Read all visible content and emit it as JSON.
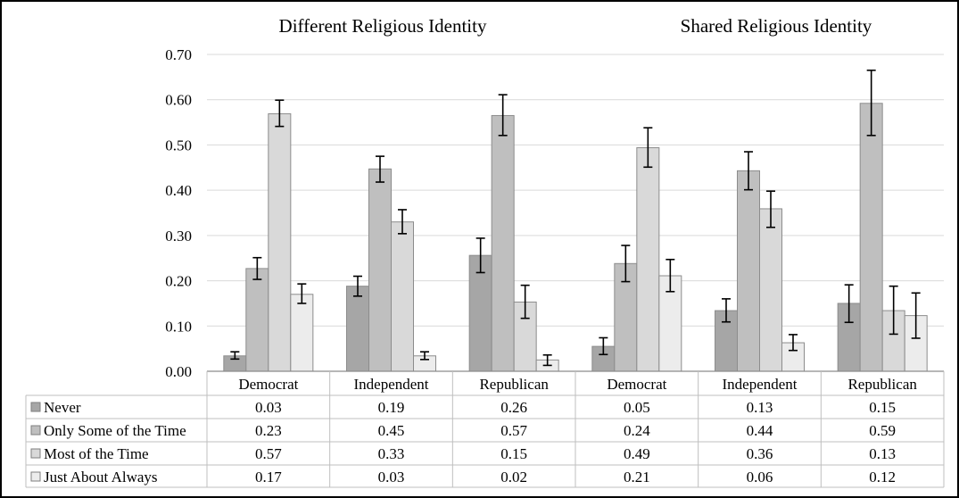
{
  "chart_data": {
    "type": "bar",
    "panels": [
      {
        "title": "Different Religious Identity"
      },
      {
        "title": "Shared Religious Identity"
      }
    ],
    "categories": [
      "Democrat",
      "Independent",
      "Republican",
      "Democrat",
      "Independent",
      "Republican"
    ],
    "series": [
      {
        "name": "Never",
        "color": "#a6a6a6",
        "values": [
          0.03,
          0.19,
          0.26,
          0.05,
          0.13,
          0.15
        ],
        "bar_values": [
          0.034,
          0.188,
          0.256,
          0.055,
          0.134,
          0.15
        ],
        "err_low": [
          0.027,
          0.166,
          0.218,
          0.037,
          0.109,
          0.108
        ],
        "err_high": [
          0.043,
          0.21,
          0.294,
          0.074,
          0.16,
          0.191
        ]
      },
      {
        "name": "Only Some of the Time",
        "color": "#bfbfbf",
        "values": [
          0.23,
          0.45,
          0.57,
          0.24,
          0.44,
          0.59
        ],
        "bar_values": [
          0.227,
          0.447,
          0.565,
          0.238,
          0.443,
          0.592
        ],
        "err_low": [
          0.203,
          0.418,
          0.521,
          0.198,
          0.401,
          0.521
        ],
        "err_high": [
          0.251,
          0.475,
          0.611,
          0.278,
          0.485,
          0.665
        ]
      },
      {
        "name": "Most of the Time",
        "color": "#d9d9d9",
        "values": [
          0.57,
          0.33,
          0.15,
          0.49,
          0.36,
          0.13
        ],
        "bar_values": [
          0.569,
          0.33,
          0.153,
          0.494,
          0.359,
          0.134
        ],
        "err_low": [
          0.541,
          0.304,
          0.117,
          0.451,
          0.318,
          0.082
        ],
        "err_high": [
          0.599,
          0.357,
          0.19,
          0.538,
          0.398,
          0.188
        ]
      },
      {
        "name": "Just About Always",
        "color": "#ececec",
        "values": [
          0.17,
          0.03,
          0.02,
          0.21,
          0.06,
          0.12
        ],
        "bar_values": [
          0.17,
          0.034,
          0.025,
          0.211,
          0.063,
          0.123
        ],
        "err_low": [
          0.15,
          0.026,
          0.013,
          0.176,
          0.046,
          0.073
        ],
        "err_high": [
          0.193,
          0.043,
          0.036,
          0.247,
          0.081,
          0.173
        ]
      }
    ],
    "yticks": [
      "0.00",
      "0.10",
      "0.20",
      "0.30",
      "0.40",
      "0.50",
      "0.60",
      "0.70"
    ],
    "ylim": [
      0,
      0.7
    ],
    "grid": true,
    "legend": "data-table-left"
  }
}
